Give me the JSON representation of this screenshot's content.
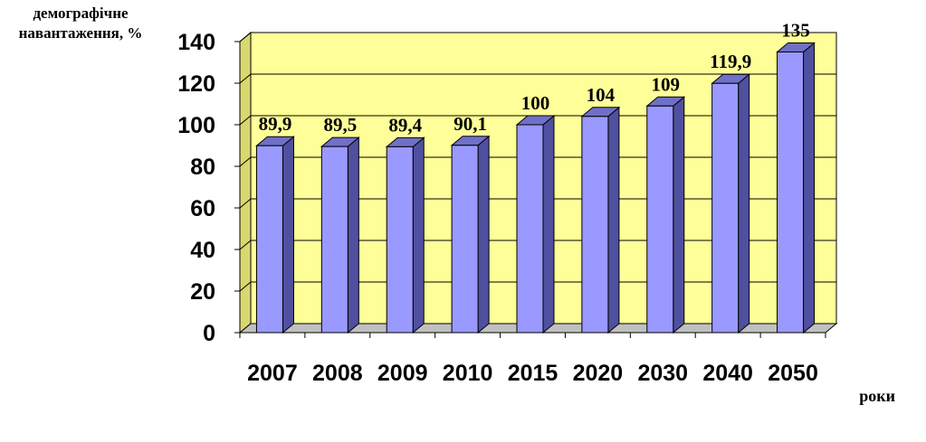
{
  "chart_data": {
    "type": "bar",
    "title": "",
    "ylabel_lines": [
      "демографічне",
      "навантаження, %"
    ],
    "xlabel": "роки",
    "categories": [
      "2007",
      "2008",
      "2009",
      "2010",
      "2015",
      "2020",
      "2030",
      "2040",
      "2050"
    ],
    "values": [
      89.9,
      89.5,
      89.4,
      90.1,
      100,
      104,
      109,
      119.9,
      135
    ],
    "data_labels": [
      "89,9",
      "89,5",
      "89,4",
      "90,1",
      "100",
      "104",
      "109",
      "119,9",
      "135"
    ],
    "ylim": [
      0,
      140
    ],
    "yticks": [
      "0",
      "20",
      "40",
      "60",
      "80",
      "100",
      "120",
      "140"
    ],
    "grid": true,
    "style": "3d-column",
    "colors": {
      "bar_front": "#9999ff",
      "bar_side": "#5050a0",
      "bar_top": "#7070c8",
      "plot_wall": "#ffff99",
      "floor": "#c0c0c0"
    }
  }
}
